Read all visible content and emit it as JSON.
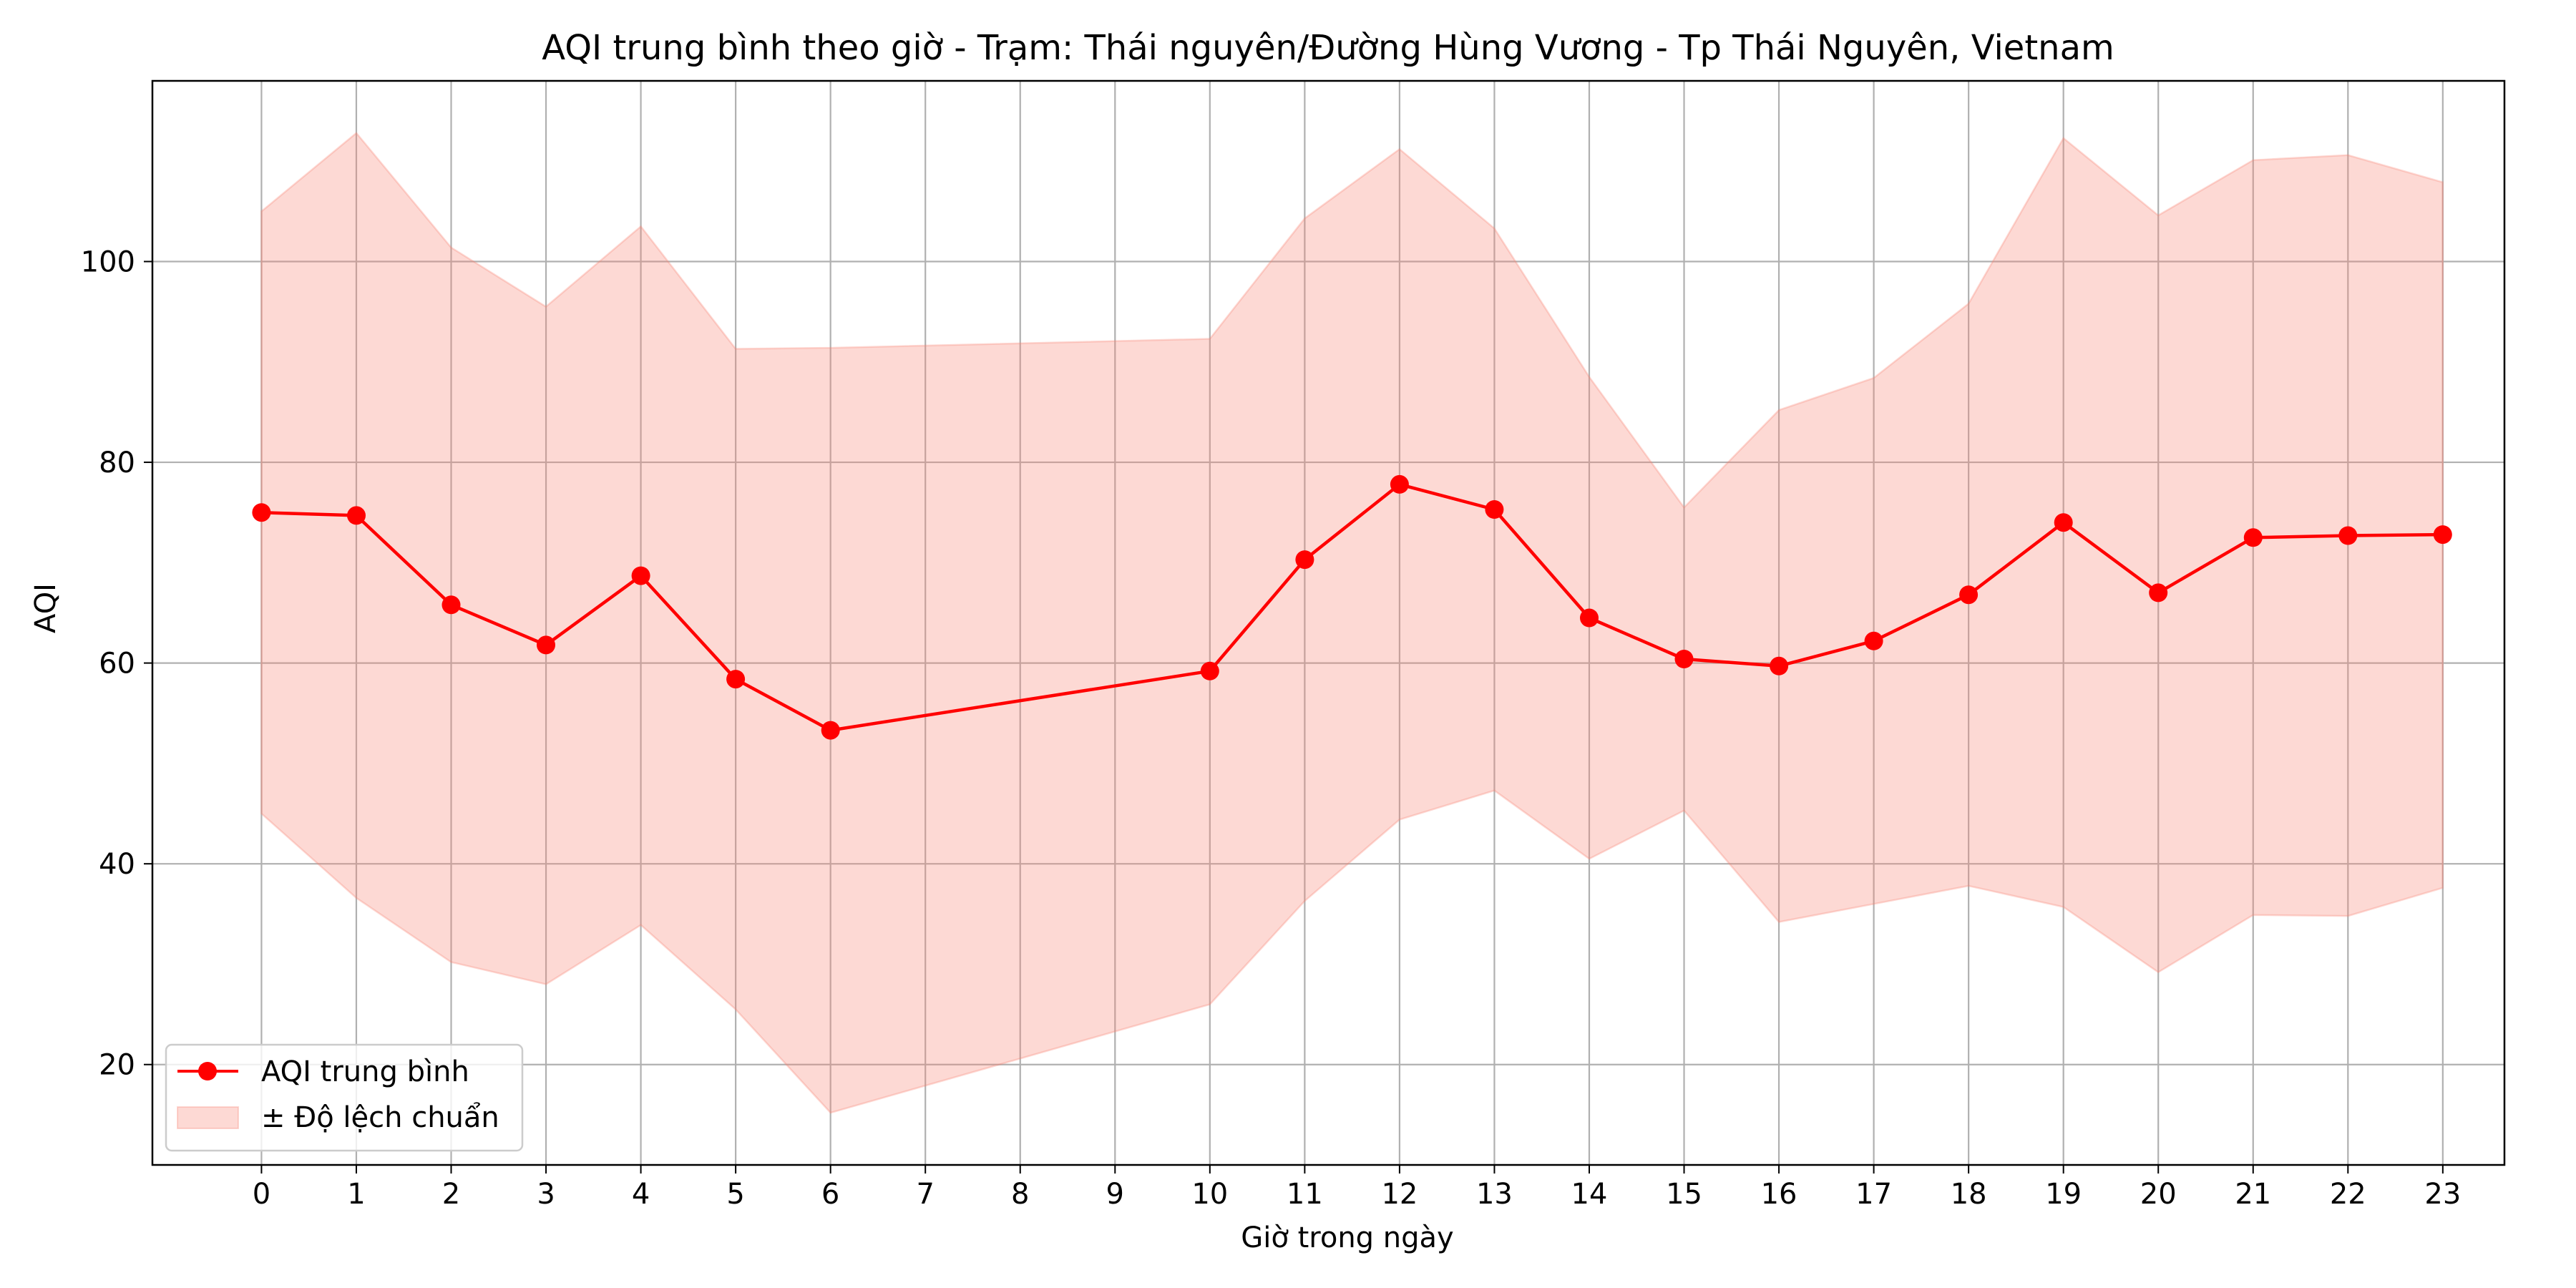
{
  "chart_data": {
    "type": "line",
    "title": "AQI trung bình theo giờ - Trạm: Thái nguyên/Đường Hùng Vương - Tp Thái Nguyên, Vietnam",
    "xlabel": "Giờ trong ngày",
    "ylabel": "AQI",
    "x": [
      0,
      1,
      2,
      3,
      4,
      5,
      6,
      10,
      11,
      12,
      13,
      14,
      15,
      16,
      17,
      18,
      19,
      20,
      21,
      22,
      23
    ],
    "x_ticks": [
      0,
      1,
      2,
      3,
      4,
      5,
      6,
      7,
      8,
      9,
      10,
      11,
      12,
      13,
      14,
      15,
      16,
      17,
      18,
      19,
      20,
      21,
      22,
      23
    ],
    "y_ticks": [
      20,
      40,
      60,
      80,
      100
    ],
    "xlim": [
      -1.15,
      23.65
    ],
    "ylim": [
      10,
      118
    ],
    "grid": true,
    "legend_position": "lower-left",
    "series": [
      {
        "name": "AQI trung bình",
        "kind": "line-marker",
        "color": "#ff0000",
        "values": [
          75.0,
          74.7,
          65.8,
          61.8,
          68.7,
          58.4,
          53.3,
          59.2,
          70.3,
          77.8,
          75.3,
          64.5,
          60.4,
          59.7,
          62.2,
          66.8,
          74.0,
          67.0,
          72.5,
          72.7,
          72.8
        ]
      },
      {
        "name": "± Độ lệch chuẩn",
        "kind": "band",
        "color": "#fa8072",
        "upper": [
          105.0,
          112.8,
          101.4,
          95.5,
          103.5,
          91.3,
          91.4,
          92.3,
          104.3,
          111.2,
          103.3,
          88.5,
          75.5,
          85.2,
          88.4,
          95.8,
          112.3,
          104.6,
          110.1,
          110.6,
          107.9
        ],
        "lower": [
          45.0,
          36.6,
          30.2,
          28.0,
          33.9,
          25.5,
          15.2,
          26.0,
          36.3,
          44.4,
          47.3,
          40.5,
          45.3,
          34.2,
          36.0,
          37.8,
          35.7,
          29.2,
          34.9,
          34.8,
          37.6
        ]
      }
    ]
  }
}
